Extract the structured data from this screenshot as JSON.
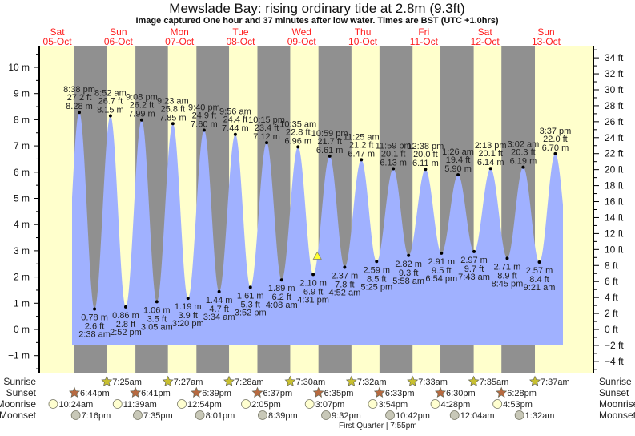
{
  "chart_data": {
    "type": "area",
    "title": "Mewslade Bay: rising  ordinary tide at 2.8m (9.3ft)",
    "subtitle": "Image captured One hour and 37 minutes after low water. Times are BST (UTC +1.0hrs)",
    "y_left_unit": "m",
    "y_right_unit": "ft",
    "ylim_m": [
      -1.65,
      10.83
    ],
    "y_left_ticks": [
      -1,
      0,
      1,
      2,
      3,
      4,
      5,
      6,
      7,
      8,
      9,
      10
    ],
    "y_right_ticks": [
      -4,
      -2,
      0,
      2,
      4,
      6,
      8,
      10,
      12,
      14,
      16,
      18,
      20,
      22,
      24,
      26,
      28,
      30,
      32,
      34
    ],
    "days": [
      {
        "dow": "Sat",
        "date": "05-Oct"
      },
      {
        "dow": "Sun",
        "date": "06-Oct"
      },
      {
        "dow": "Mon",
        "date": "07-Oct"
      },
      {
        "dow": "Tue",
        "date": "08-Oct"
      },
      {
        "dow": "Wed",
        "date": "09-Oct"
      },
      {
        "dow": "Thu",
        "date": "10-Oct"
      },
      {
        "dow": "Fri",
        "date": "11-Oct"
      },
      {
        "dow": "Sat",
        "date": "12-Oct"
      },
      {
        "dow": "Sun",
        "date": "13-Oct"
      }
    ],
    "tides": [
      {
        "type": "high",
        "date": "05-Oct",
        "time": "8:38 pm",
        "m": "8.28 m",
        "ft": "27.2 ft",
        "value": 8.28
      },
      {
        "type": "low",
        "date": "06-Oct",
        "time": "2:38 am",
        "m": "0.78 m",
        "ft": "2.6 ft",
        "value": 0.78
      },
      {
        "type": "high",
        "date": "06-Oct",
        "time": "8:52 am",
        "m": "8.15 m",
        "ft": "26.7 ft",
        "value": 8.15
      },
      {
        "type": "low",
        "date": "06-Oct",
        "time": "2:52 pm",
        "m": "0.86 m",
        "ft": "2.8 ft",
        "value": 0.86
      },
      {
        "type": "high",
        "date": "06-Oct",
        "time": "9:08 pm",
        "m": "7.99 m",
        "ft": "26.2 ft",
        "value": 7.99
      },
      {
        "type": "low",
        "date": "07-Oct",
        "time": "3:05 am",
        "m": "1.06 m",
        "ft": "3.5 ft",
        "value": 1.06
      },
      {
        "type": "high",
        "date": "07-Oct",
        "time": "9:23 am",
        "m": "7.85 m",
        "ft": "25.8 ft",
        "value": 7.85
      },
      {
        "type": "low",
        "date": "07-Oct",
        "time": "3:20 pm",
        "m": "1.19 m",
        "ft": "3.9 ft",
        "value": 1.19
      },
      {
        "type": "high",
        "date": "07-Oct",
        "time": "9:40 pm",
        "m": "7.60 m",
        "ft": "24.9 ft",
        "value": 7.6
      },
      {
        "type": "low",
        "date": "08-Oct",
        "time": "3:34 am",
        "m": "1.44 m",
        "ft": "4.7 ft",
        "value": 1.44
      },
      {
        "type": "high",
        "date": "08-Oct",
        "time": "9:56 am",
        "m": "7.44 m",
        "ft": "24.4 ft",
        "value": 7.44
      },
      {
        "type": "low",
        "date": "08-Oct",
        "time": "3:52 pm",
        "m": "1.61 m",
        "ft": "5.3 ft",
        "value": 1.61
      },
      {
        "type": "high",
        "date": "08-Oct",
        "time": "10:15 pm",
        "m": "7.12 m",
        "ft": "23.4 ft",
        "value": 7.12
      },
      {
        "type": "low",
        "date": "09-Oct",
        "time": "4:08 am",
        "m": "1.89 m",
        "ft": "6.2 ft",
        "value": 1.89
      },
      {
        "type": "high",
        "date": "09-Oct",
        "time": "10:35 am",
        "m": "6.96 m",
        "ft": "22.8 ft",
        "value": 6.96
      },
      {
        "type": "low",
        "date": "09-Oct",
        "time": "4:31 pm",
        "m": "2.10 m",
        "ft": "6.9 ft",
        "value": 2.1
      },
      {
        "type": "high",
        "date": "09-Oct",
        "time": "10:59 pm",
        "m": "6.61 m",
        "ft": "21.7 ft",
        "value": 6.61
      },
      {
        "type": "low",
        "date": "10-Oct",
        "time": "4:52 am",
        "m": "2.37 m",
        "ft": "7.8 ft",
        "value": 2.37
      },
      {
        "type": "high",
        "date": "10-Oct",
        "time": "11:25 am",
        "m": "6.47 m",
        "ft": "21.2 ft",
        "value": 6.47
      },
      {
        "type": "low",
        "date": "10-Oct",
        "time": "5:25 pm",
        "m": "2.59 m",
        "ft": "8.5 ft",
        "value": 2.59
      },
      {
        "type": "high",
        "date": "10-Oct",
        "time": "11:59 pm",
        "m": "6.13 m",
        "ft": "20.1 ft",
        "value": 6.13
      },
      {
        "type": "low",
        "date": "11-Oct",
        "time": "5:58 am",
        "m": "2.82 m",
        "ft": "9.3 ft",
        "value": 2.82
      },
      {
        "type": "high",
        "date": "11-Oct",
        "time": "12:38 pm",
        "m": "6.11 m",
        "ft": "20.0 ft",
        "value": 6.11
      },
      {
        "type": "low",
        "date": "11-Oct",
        "time": "6:54 pm",
        "m": "2.91 m",
        "ft": "9.5 ft",
        "value": 2.91
      },
      {
        "type": "high",
        "date": "12-Oct",
        "time": "1:26 am",
        "m": "5.90 m",
        "ft": "19.4 ft",
        "value": 5.9
      },
      {
        "type": "low",
        "date": "12-Oct",
        "time": "7:43 am",
        "m": "2.97 m",
        "ft": "9.7 ft",
        "value": 2.97
      },
      {
        "type": "high",
        "date": "12-Oct",
        "time": "2:13 pm",
        "m": "6.14 m",
        "ft": "20.1 ft",
        "value": 6.14
      },
      {
        "type": "low",
        "date": "12-Oct",
        "time": "8:45 pm",
        "m": "2.71 m",
        "ft": "8.9 ft",
        "value": 2.71
      },
      {
        "type": "high",
        "date": "13-Oct",
        "time": "3:02 am",
        "m": "6.19 m",
        "ft": "20.3 ft",
        "value": 6.19
      },
      {
        "type": "low",
        "date": "13-Oct",
        "time": "9:21 am",
        "m": "2.57 m",
        "ft": "8.4 ft",
        "value": 2.57
      },
      {
        "type": "high",
        "date": "13-Oct",
        "time": "3:37 pm",
        "m": "6.70 m",
        "ft": "22.0 ft",
        "value": 6.7
      }
    ],
    "current": {
      "date": "09-Oct",
      "time": "6:08 pm",
      "value": 2.8,
      "marker": "yellow-triangle"
    },
    "rows": {
      "sunrise": {
        "label": "Sunrise",
        "items": [
          {
            "date": "06-Oct",
            "time": "7:25am"
          },
          {
            "date": "07-Oct",
            "time": "7:27am"
          },
          {
            "date": "08-Oct",
            "time": "7:28am"
          },
          {
            "date": "09-Oct",
            "time": "7:30am"
          },
          {
            "date": "10-Oct",
            "time": "7:32am"
          },
          {
            "date": "11-Oct",
            "time": "7:33am"
          },
          {
            "date": "12-Oct",
            "time": "7:35am"
          },
          {
            "date": "13-Oct",
            "time": "7:37am"
          }
        ]
      },
      "sunset": {
        "label": "Sunset",
        "items": [
          {
            "date": "05-Oct",
            "time": "6:44pm"
          },
          {
            "date": "06-Oct",
            "time": "6:41pm"
          },
          {
            "date": "07-Oct",
            "time": "6:39pm"
          },
          {
            "date": "08-Oct",
            "time": "6:37pm"
          },
          {
            "date": "09-Oct",
            "time": "6:35pm"
          },
          {
            "date": "10-Oct",
            "time": "6:33pm"
          },
          {
            "date": "11-Oct",
            "time": "6:30pm"
          },
          {
            "date": "12-Oct",
            "time": "6:28pm"
          }
        ]
      },
      "moonrise": {
        "label": "Moonrise",
        "items": [
          {
            "date": "05-Oct",
            "time": "10:24am"
          },
          {
            "date": "06-Oct",
            "time": "11:39am"
          },
          {
            "date": "07-Oct",
            "time": "12:54pm"
          },
          {
            "date": "08-Oct",
            "time": "2:05pm"
          },
          {
            "date": "09-Oct",
            "time": "3:07pm"
          },
          {
            "date": "10-Oct",
            "time": "3:54pm"
          },
          {
            "date": "11-Oct",
            "time": "4:28pm"
          },
          {
            "date": "12-Oct",
            "time": "4:53pm"
          }
        ]
      },
      "moonset": {
        "label": "Moonset",
        "items": [
          {
            "date": "05-Oct",
            "time": "7:16pm"
          },
          {
            "date": "06-Oct",
            "time": "7:35pm"
          },
          {
            "date": "07-Oct",
            "time": "8:01pm"
          },
          {
            "date": "08-Oct",
            "time": "8:39pm"
          },
          {
            "date": "09-Oct",
            "time": "9:32pm"
          },
          {
            "date": "10-Oct",
            "time": "10:42pm"
          },
          {
            "date": "12-Oct",
            "time": "12:04am"
          },
          {
            "date": "13-Oct",
            "time": "1:32am"
          }
        ]
      }
    },
    "moon_phase": {
      "text": "First Quarter | 7:55pm",
      "date": "09-Oct",
      "time": "7:55pm"
    },
    "colors": {
      "day": "#ffffcc",
      "night": "#909090",
      "water": "#a0b1ff",
      "day_label": "#ff2020",
      "sunrise": "#c8c030",
      "sunset": "#b86a40",
      "moonrise": "#ffffd0",
      "moonset": "#c8c8b8",
      "marker": "#ffff30"
    }
  }
}
